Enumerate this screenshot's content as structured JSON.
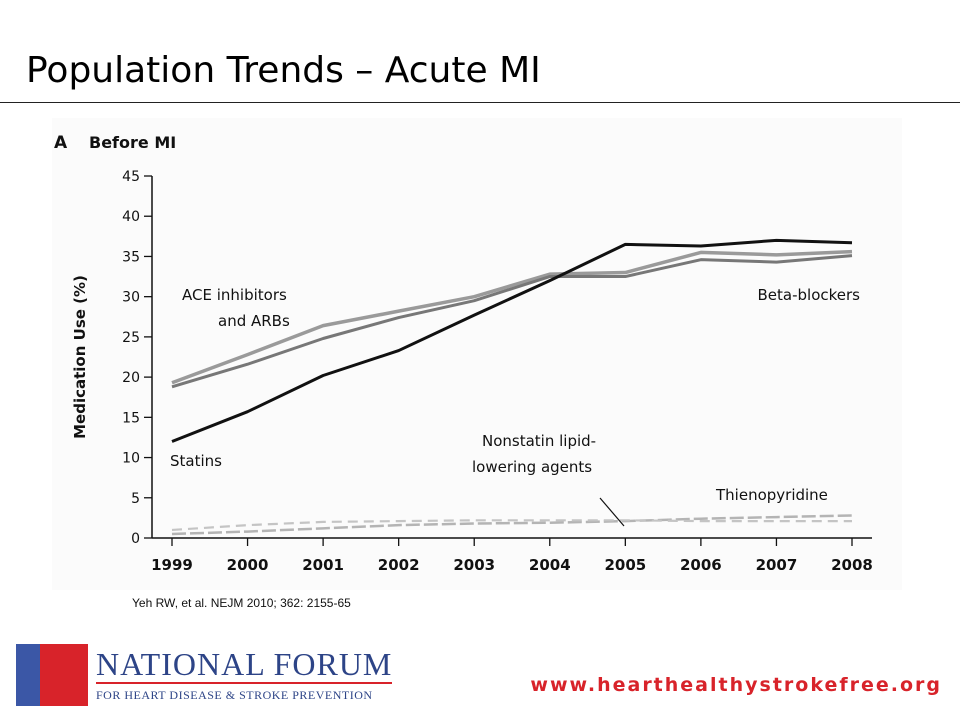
{
  "slide": {
    "title": "Population Trends – Acute MI",
    "citation": "Yeh RW, et al.  NEJM 2010; 362: 2155-65"
  },
  "footer": {
    "logo_name": "NATIONAL FORUM",
    "logo_tagline": "FOR HEART DISEASE & STROKE PREVENTION",
    "website": "www.hearthealthystrokefree.org"
  },
  "colors": {
    "brand_blue": "#3b57a6",
    "brand_red": "#d8232a",
    "statins": "#111111",
    "ace_arbs": "#9a9a9a",
    "beta_blockers": "#777777",
    "nonstatin": "#c4c4c4",
    "thienopyridine": "#b4b4b4"
  },
  "chart_data": {
    "type": "line",
    "panel_letter": "A",
    "title": "Before MI",
    "ylabel": "Medication Use (%)",
    "xlabel": "",
    "ylim": [
      0,
      45
    ],
    "yticks": [
      0,
      5,
      10,
      15,
      20,
      25,
      30,
      35,
      40,
      45
    ],
    "x": [
      "1999",
      "2000",
      "2001",
      "2002",
      "2003",
      "2004",
      "2005",
      "2006",
      "2007",
      "2008"
    ],
    "series": [
      {
        "name": "Statins",
        "values": [
          12,
          15.7,
          20.2,
          23.3,
          27.7,
          32,
          36.5,
          36.3,
          37,
          36.7
        ]
      },
      {
        "name": "ACE inhibitors and ARBs",
        "values": [
          19.3,
          22.8,
          26.4,
          28.2,
          30,
          32.8,
          33,
          35.5,
          35.2,
          35.6
        ]
      },
      {
        "name": "Beta-blockers",
        "values": [
          18.8,
          21.6,
          24.8,
          27.4,
          29.5,
          32.5,
          32.5,
          34.6,
          34.3,
          35.1
        ]
      },
      {
        "name": "Nonstatin lipid-lowering agents",
        "values": [
          1,
          1.6,
          2,
          2.1,
          2.2,
          2.2,
          2.2,
          2.1,
          2.1,
          2.1
        ]
      },
      {
        "name": "Thienopyridine",
        "values": [
          0.5,
          0.8,
          1.2,
          1.6,
          1.8,
          1.9,
          2.1,
          2.4,
          2.6,
          2.8
        ]
      }
    ],
    "annotations": [
      {
        "text": "ACE inhibitors",
        "series": "ACE inhibitors and ARBs"
      },
      {
        "text": "and ARBs",
        "series": "ACE inhibitors and ARBs"
      },
      {
        "text": "Beta-blockers",
        "series": "Beta-blockers"
      },
      {
        "text": "Statins",
        "series": "Statins"
      },
      {
        "text": "Nonstatin lipid-",
        "series": "Nonstatin lipid-lowering agents"
      },
      {
        "text": "lowering agents",
        "series": "Nonstatin lipid-lowering agents"
      },
      {
        "text": "Thienopyridine",
        "series": "Thienopyridine"
      }
    ],
    "grid": false
  }
}
